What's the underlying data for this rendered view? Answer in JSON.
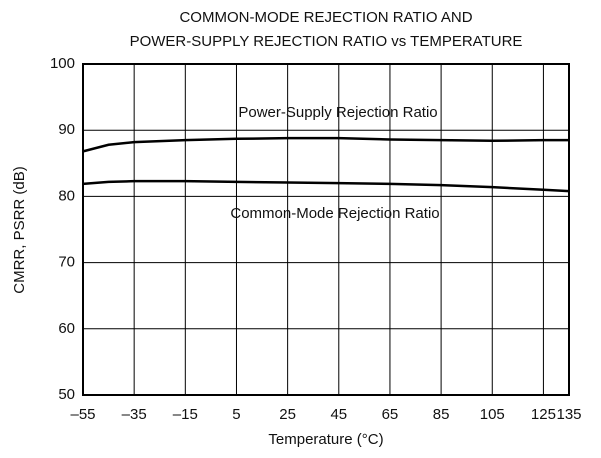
{
  "chart_data": {
    "type": "line",
    "title": [
      "COMMON-MODE REJECTION RATIO AND",
      "POWER-SUPPLY REJECTION RATIO vs TEMPERATURE"
    ],
    "x_label": "Temperature (°C)",
    "y_label": "CMRR, PSRR (dB)",
    "x": [
      -55,
      -45,
      -35,
      -15,
      5,
      25,
      45,
      65,
      85,
      105,
      125,
      135
    ],
    "series": [
      {
        "name": "Power-Supply Rejection Ratio",
        "color": "#000000",
        "values": [
          86.8,
          87.8,
          88.2,
          88.5,
          88.7,
          88.8,
          88.8,
          88.6,
          88.5,
          88.4,
          88.5,
          88.5
        ]
      },
      {
        "name": "Common-Mode Rejection Ratio",
        "color": "#000000",
        "values": [
          81.9,
          82.2,
          82.3,
          82.3,
          82.2,
          82.1,
          82.0,
          81.9,
          81.7,
          81.4,
          81.0,
          80.8
        ]
      }
    ],
    "xlim": [
      -55,
      135
    ],
    "xticks": [
      {
        "value": -55,
        "label": "–55"
      },
      {
        "value": -35,
        "label": "–35"
      },
      {
        "value": -15,
        "label": "–15"
      },
      5,
      25,
      45,
      65,
      85,
      105,
      125,
      135
    ],
    "ylim": [
      50,
      100
    ],
    "yticks": [
      50,
      60,
      70,
      80,
      90,
      100
    ],
    "grid": true
  }
}
